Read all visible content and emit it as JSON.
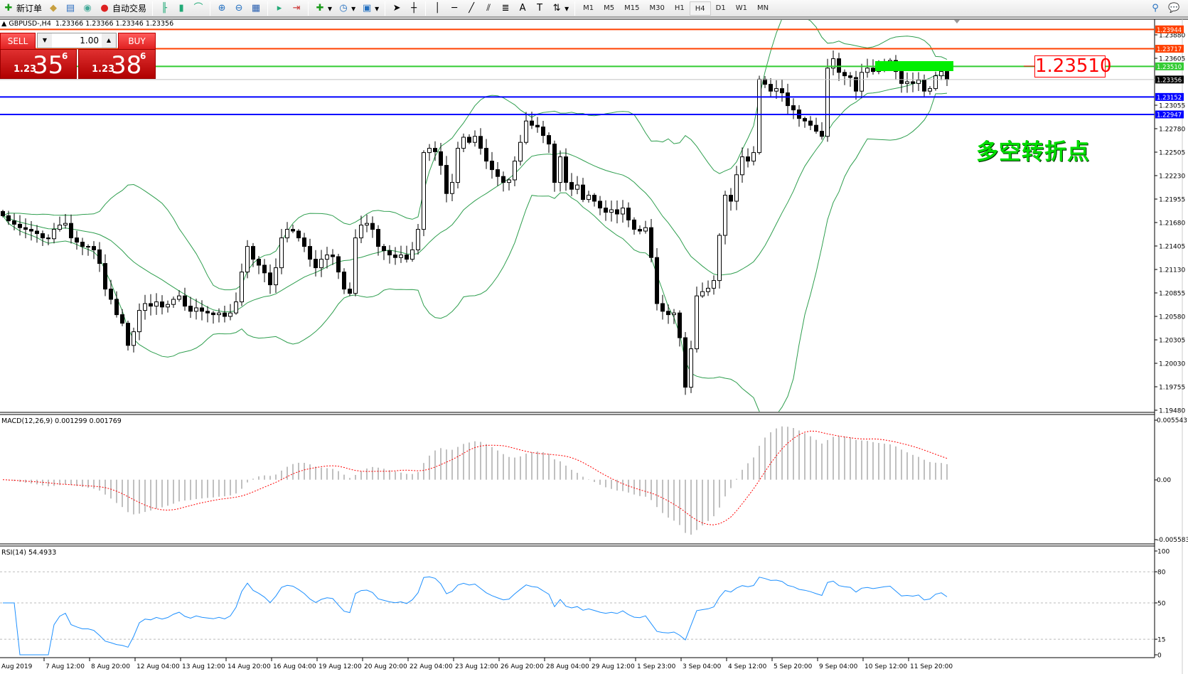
{
  "toolbar": {
    "new_order": "新订单",
    "auto_trading": "自动交易",
    "timeframes": [
      "M1",
      "M5",
      "M15",
      "M30",
      "H1",
      "H4",
      "D1",
      "W1",
      "MN"
    ],
    "active_timeframe": "H4"
  },
  "chart": {
    "header": "GBPUSD-,H4  1.23366 1.23366 1.23346 1.23356",
    "one_click": {
      "sell_label": "SELL",
      "buy_label": "BUY",
      "lot": "1.00",
      "sell_price": {
        "prefix": "1.23",
        "big": "35",
        "pip": "6"
      },
      "buy_price": {
        "prefix": "1.23",
        "big": "38",
        "pip": "6"
      }
    },
    "price_ticks": [
      "1.23880",
      "1.23605",
      "1.23055",
      "1.22780",
      "1.22505",
      "1.22230",
      "1.21955",
      "1.21680",
      "1.21405",
      "1.21130",
      "1.20855",
      "1.20580",
      "1.20305",
      "1.20030",
      "1.19755",
      "1.19480"
    ],
    "price_range": [
      1.1948,
      1.2388
    ],
    "levels": [
      {
        "price": "1.23944",
        "color": "#ff4000",
        "tag_bg": "#ff4000"
      },
      {
        "price": "1.23717",
        "color": "#ff4000",
        "tag_bg": "#ff4000"
      },
      {
        "price": "1.23510",
        "color": "#33cc33",
        "tag_bg": "#33cc33"
      },
      {
        "price": "1.23356",
        "color": "#c0c0c0",
        "tag_bg": "#000000"
      },
      {
        "price": "1.23152",
        "color": "#0000ff",
        "tag_bg": "#0000ff"
      },
      {
        "price": "1.22947",
        "color": "#0000ff",
        "tag_bg": "#0000ff"
      }
    ],
    "annotation_price": "1.23510",
    "annotation_text": "多空转折点",
    "zone_color": "#00ee00",
    "closes": [
      1.2176,
      1.217,
      1.2166,
      1.2162,
      1.216,
      1.2158,
      1.2155,
      1.215,
      1.2149,
      1.216,
      1.2165,
      1.2167,
      1.215,
      1.2145,
      1.214,
      1.214,
      1.2136,
      1.212,
      1.209,
      1.2078,
      1.206,
      1.205,
      1.2024,
      1.204,
      1.2065,
      1.2073,
      1.207,
      1.2075,
      1.2069,
      1.2072,
      1.2078,
      1.2082,
      1.207,
      1.2064,
      1.2068,
      1.2064,
      1.2062,
      1.206,
      1.2062,
      1.2058,
      1.2062,
      1.2075,
      1.211,
      1.214,
      1.2125,
      1.2118,
      1.2109,
      1.2095,
      1.2115,
      1.215,
      1.216,
      1.2158,
      1.215,
      1.214,
      1.2125,
      1.2115,
      1.2125,
      1.213,
      1.2128,
      1.211,
      1.209,
      1.2085,
      1.215,
      1.2165,
      1.2167,
      1.216,
      1.214,
      1.2135,
      1.213,
      1.2127,
      1.213,
      1.2125,
      1.2136,
      1.216,
      1.225,
      1.2255,
      1.2251,
      1.2235,
      1.2202,
      1.2215,
      1.2255,
      1.2268,
      1.2262,
      1.2269,
      1.2255,
      1.224,
      1.223,
      1.2222,
      1.2215,
      1.2218,
      1.224,
      1.2262,
      1.2287,
      1.2282,
      1.228,
      1.227,
      1.226,
      1.2215,
      1.2245,
      1.2215,
      1.2207,
      1.2212,
      1.2195,
      1.22,
      1.2193,
      1.2185,
      1.218,
      1.2183,
      1.2178,
      1.2185,
      1.2171,
      1.216,
      1.2158,
      1.2162,
      1.2127,
      1.2073,
      1.2064,
      1.206,
      1.2062,
      1.2033,
      1.1975,
      1.202,
      1.2082,
      1.2087,
      1.2091,
      1.21,
      1.2153,
      1.22,
      1.2193,
      1.2224,
      1.2245,
      1.224,
      1.225,
      1.2336,
      1.233,
      1.2322,
      1.2325,
      1.232,
      1.2305,
      1.23,
      1.229,
      1.2287,
      1.2282,
      1.2275,
      1.2269,
      1.2349,
      1.236,
      1.2344,
      1.234,
      1.2338,
      1.2322,
      1.2344,
      1.2349,
      1.2345,
      1.235,
      1.2355,
      1.2358,
      1.2345,
      1.2331,
      1.2333,
      1.2331,
      1.2335,
      1.2322,
      1.2325,
      1.234,
      1.2345,
      1.23356
    ],
    "bollinger_color": "#2e9e4e"
  },
  "macd": {
    "label": "MACD(12,26,9) 0.001299 0.001769",
    "ticks": [
      "0.005543",
      "0.00",
      "-0.005583"
    ],
    "range": [
      -0.005583,
      0.005543
    ],
    "hist_color": "#c0c0c0",
    "signal_color": "#ff0000"
  },
  "rsi": {
    "label": "RSI(14) 54.4933",
    "ticks": [
      "100",
      "80",
      "50",
      "15",
      "0"
    ],
    "color": "#1e90ff"
  },
  "time_axis": [
    "Aug 2019",
    "7 Aug 12:00",
    "8 Aug 20:00",
    "12 Aug 04:00",
    "13 Aug 12:00",
    "14 Aug 20:00",
    "16 Aug 04:00",
    "19 Aug 12:00",
    "20 Aug 20:00",
    "22 Aug 04:00",
    "23 Aug 12:00",
    "26 Aug 20:00",
    "28 Aug 04:00",
    "29 Aug 12:00",
    "1 Sep 23:00",
    "3 Sep 04:00",
    "4 Sep 12:00",
    "5 Sep 20:00",
    "9 Sep 04:00",
    "10 Sep 12:00",
    "11 Sep 20:00"
  ]
}
